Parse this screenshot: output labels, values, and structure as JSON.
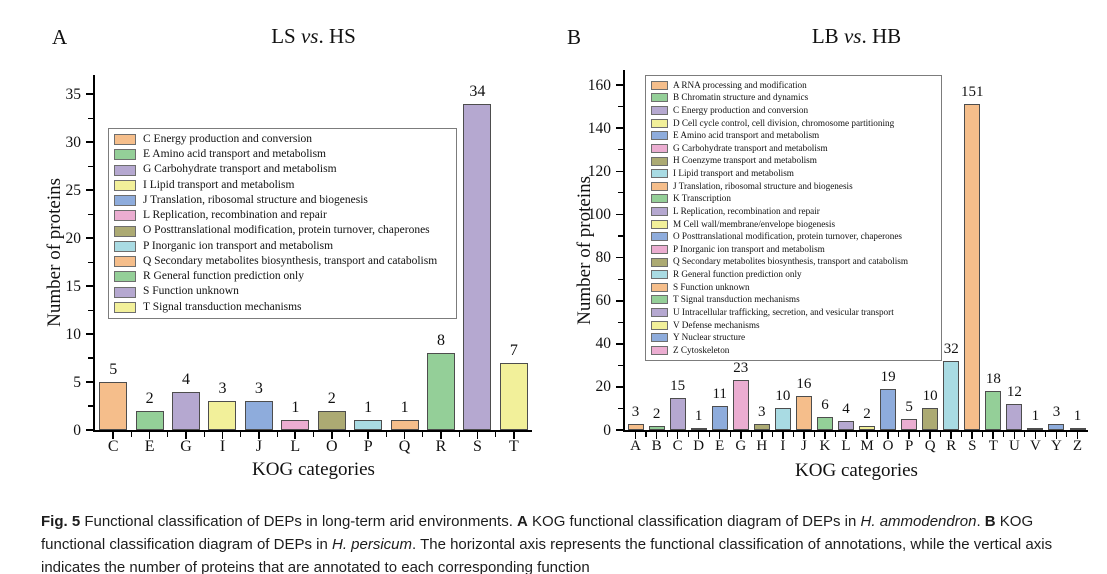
{
  "palette": {
    "orange": "#F5BE8B",
    "green": "#94CF98",
    "purple": "#B5A8D0",
    "yellow": "#F2F09A",
    "blue": "#8EACDC",
    "pink": "#EBADD1",
    "olive": "#ACAA73",
    "cyan": "#A9DBE3"
  },
  "chart_data": [
    {
      "type": "bar",
      "panel_label": "A",
      "title_segments": [
        {
          "text": "LS "
        },
        {
          "text": "vs",
          "italic": true
        },
        {
          "text": ". HS"
        }
      ],
      "xlabel": "KOG categories",
      "ylabel": "Number of proteins",
      "ylim": [
        0,
        37
      ],
      "yticks": [
        0,
        5,
        10,
        15,
        20,
        25,
        30,
        35
      ],
      "y_minor_step": 2.5,
      "grid": false,
      "legend_position": "inside-upper-left",
      "categories": [
        "C",
        "E",
        "G",
        "I",
        "J",
        "L",
        "O",
        "P",
        "Q",
        "R",
        "S",
        "T"
      ],
      "values": [
        5,
        2,
        4,
        3,
        3,
        1,
        2,
        1,
        1,
        8,
        34,
        7
      ],
      "bar_colors": [
        "orange",
        "green",
        "purple",
        "yellow",
        "blue",
        "pink",
        "olive",
        "cyan",
        "orange",
        "green",
        "purple",
        "yellow"
      ],
      "legend": [
        {
          "code": "C",
          "label": "Energy production and conversion",
          "color": "orange"
        },
        {
          "code": "E",
          "label": "Amino acid transport and metabolism",
          "color": "green"
        },
        {
          "code": "G",
          "label": "Carbohydrate transport and metabolism",
          "color": "purple"
        },
        {
          "code": "I",
          "label": "Lipid transport and metabolism",
          "color": "yellow"
        },
        {
          "code": "J",
          "label": "Translation, ribosomal structure and biogenesis",
          "color": "blue"
        },
        {
          "code": "L",
          "label": "Replication, recombination and repair",
          "color": "pink"
        },
        {
          "code": "O",
          "label": "Posttranslational modification, protein turnover, chaperones",
          "color": "olive"
        },
        {
          "code": "P",
          "label": "Inorganic ion transport and metabolism",
          "color": "cyan"
        },
        {
          "code": "Q",
          "label": "Secondary metabolites biosynthesis, transport and catabolism",
          "color": "orange"
        },
        {
          "code": "R",
          "label": "General function prediction only",
          "color": "green"
        },
        {
          "code": "S",
          "label": "Function unknown",
          "color": "purple"
        },
        {
          "code": "T",
          "label": "Signal transduction mechanisms",
          "color": "yellow"
        }
      ]
    },
    {
      "type": "bar",
      "panel_label": "B",
      "title_segments": [
        {
          "text": "LB "
        },
        {
          "text": "vs",
          "italic": true
        },
        {
          "text": ". HB"
        }
      ],
      "xlabel": "KOG categories",
      "ylabel": "Number of proteins",
      "ylim": [
        0,
        167
      ],
      "yticks": [
        0,
        20,
        40,
        60,
        80,
        100,
        120,
        140,
        160
      ],
      "y_minor_step": 10,
      "grid": false,
      "legend_position": "inside-upper-left",
      "categories": [
        "A",
        "B",
        "C",
        "D",
        "E",
        "G",
        "H",
        "I",
        "J",
        "K",
        "L",
        "M",
        "O",
        "P",
        "Q",
        "R",
        "S",
        "T",
        "U",
        "V",
        "Y",
        "Z"
      ],
      "values": [
        3,
        2,
        15,
        1,
        11,
        23,
        3,
        10,
        16,
        6,
        4,
        2,
        19,
        5,
        10,
        32,
        151,
        18,
        12,
        1,
        3,
        1
      ],
      "bar_colors": [
        "orange",
        "green",
        "purple",
        "yellow",
        "blue",
        "pink",
        "olive",
        "cyan",
        "orange",
        "green",
        "purple",
        "yellow",
        "blue",
        "pink",
        "olive",
        "cyan",
        "orange",
        "green",
        "purple",
        "yellow",
        "blue",
        "pink"
      ],
      "legend": [
        {
          "code": "A",
          "label": "RNA processing and modification",
          "color": "orange"
        },
        {
          "code": "B",
          "label": "Chromatin structure and dynamics",
          "color": "green"
        },
        {
          "code": "C",
          "label": "Energy production and conversion",
          "color": "purple"
        },
        {
          "code": "D",
          "label": "Cell cycle control, cell division, chromosome partitioning",
          "color": "yellow"
        },
        {
          "code": "E",
          "label": "Amino acid transport and metabolism",
          "color": "blue"
        },
        {
          "code": "G",
          "label": "Carbohydrate transport and metabolism",
          "color": "pink"
        },
        {
          "code": "H",
          "label": "Coenzyme transport and metabolism",
          "color": "olive"
        },
        {
          "code": "I",
          "label": "Lipid transport and metabolism",
          "color": "cyan"
        },
        {
          "code": "J",
          "label": "Translation, ribosomal structure and biogenesis",
          "color": "orange"
        },
        {
          "code": "K",
          "label": "Transcription",
          "color": "green"
        },
        {
          "code": "L",
          "label": "Replication, recombination and repair",
          "color": "purple"
        },
        {
          "code": "M",
          "label": "Cell wall/membrane/envelope biogenesis",
          "color": "yellow"
        },
        {
          "code": "O",
          "label": "Posttranslational modification, protein turnover, chaperones",
          "color": "blue"
        },
        {
          "code": "P",
          "label": "Inorganic ion transport and metabolism",
          "color": "pink"
        },
        {
          "code": "Q",
          "label": "Secondary metabolites biosynthesis, transport and catabolism",
          "color": "olive"
        },
        {
          "code": "R",
          "label": "General function prediction only",
          "color": "cyan"
        },
        {
          "code": "S",
          "label": "Function unknown",
          "color": "orange"
        },
        {
          "code": "T",
          "label": "Signal transduction mechanisms",
          "color": "green"
        },
        {
          "code": "U",
          "label": "Intracellular trafficking, secretion, and vesicular transport",
          "color": "purple"
        },
        {
          "code": "V",
          "label": "Defense mechanisms",
          "color": "yellow"
        },
        {
          "code": "Y",
          "label": "Nuclear structure",
          "color": "blue"
        },
        {
          "code": "Z",
          "label": "Cytoskeleton",
          "color": "pink"
        }
      ]
    }
  ],
  "caption_segments": [
    {
      "text": "Fig. 5",
      "bold": true
    },
    {
      "text": " Functional classification of DEPs in long-term arid environments. "
    },
    {
      "text": "A",
      "bold": true
    },
    {
      "text": " KOG functional classification diagram of DEPs in "
    },
    {
      "text": "H. ammodendron",
      "italic": true
    },
    {
      "text": ". "
    },
    {
      "text": "B",
      "bold": true
    },
    {
      "text": " KOG functional classification diagram of DEPs in "
    },
    {
      "text": "H. persicum",
      "italic": true
    },
    {
      "text": ". The horizontal axis represents the functional classification of annotations, while the vertical axis indicates the number of proteins that are annotated to each corresponding function"
    }
  ]
}
